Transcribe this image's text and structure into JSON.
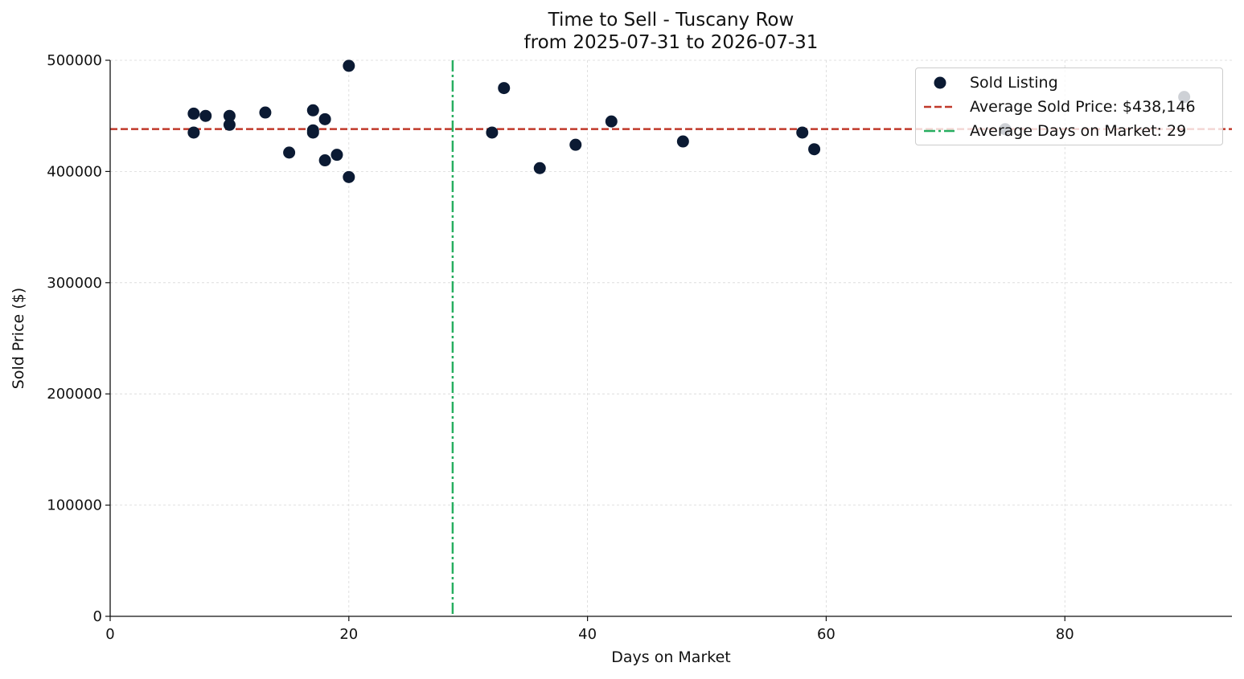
{
  "chart_data": {
    "type": "scatter",
    "title": "Time to Sell - Tuscany Row",
    "subtitle": "from 2025-07-31 to 2026-07-31",
    "xlabel": "Days on Market",
    "ylabel": "Sold Price ($)",
    "xlim": [
      0,
      94
    ],
    "ylim": [
      0,
      500000
    ],
    "xticks": [
      0,
      20,
      40,
      60,
      80
    ],
    "yticks": [
      0,
      100000,
      200000,
      300000,
      400000,
      500000
    ],
    "grid": true,
    "legend_position": "top-right",
    "series": [
      {
        "name": "Sold Listing",
        "color": "#0b1a33",
        "points": [
          {
            "x": 7,
            "y": 452000
          },
          {
            "x": 7,
            "y": 435000
          },
          {
            "x": 8,
            "y": 450000
          },
          {
            "x": 10,
            "y": 450000
          },
          {
            "x": 10,
            "y": 442000
          },
          {
            "x": 13,
            "y": 453000
          },
          {
            "x": 15,
            "y": 417000
          },
          {
            "x": 17,
            "y": 455000
          },
          {
            "x": 17,
            "y": 437000
          },
          {
            "x": 17,
            "y": 435000
          },
          {
            "x": 18,
            "y": 447000
          },
          {
            "x": 18,
            "y": 410000
          },
          {
            "x": 19,
            "y": 415000
          },
          {
            "x": 20,
            "y": 495000
          },
          {
            "x": 20,
            "y": 395000
          },
          {
            "x": 32,
            "y": 435000
          },
          {
            "x": 33,
            "y": 475000
          },
          {
            "x": 36,
            "y": 403000
          },
          {
            "x": 39,
            "y": 424000
          },
          {
            "x": 42,
            "y": 445000
          },
          {
            "x": 48,
            "y": 427000
          },
          {
            "x": 58,
            "y": 435000
          },
          {
            "x": 59,
            "y": 420000
          },
          {
            "x": 75,
            "y": 438000
          },
          {
            "x": 90,
            "y": 467000
          }
        ]
      }
    ],
    "reference_lines": [
      {
        "name": "Average Sold Price: $438,146",
        "orientation": "horizontal",
        "value": 438146,
        "color": "#c0392b",
        "style": "dashed"
      },
      {
        "name": "Average Days on Market: 29",
        "orientation": "vertical",
        "value": 28.7,
        "color": "#27ae60",
        "style": "dashdot"
      }
    ]
  }
}
